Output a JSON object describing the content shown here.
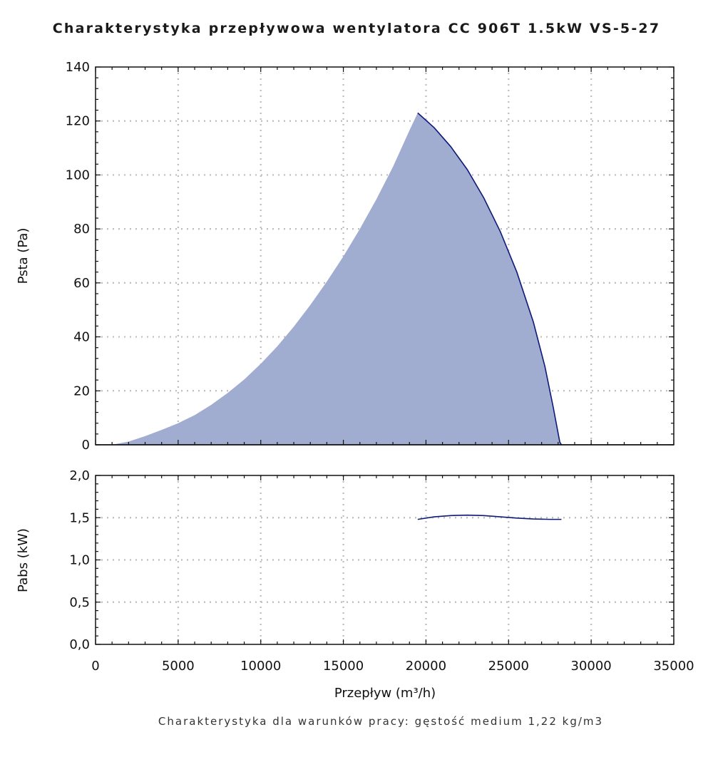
{
  "chart_data": [
    {
      "type": "area",
      "title": "Charakterystyka przepływowa wentylatora CC 906T 1.5kW VS-5-27",
      "xlabel": "",
      "ylabel": "Psta (Pa)",
      "xlim": [
        0,
        35000
      ],
      "ylim": [
        0,
        140
      ],
      "xticks": [
        0,
        5000,
        10000,
        15000,
        20000,
        25000,
        30000,
        35000
      ],
      "yticks": [
        0,
        20,
        40,
        60,
        80,
        100,
        120,
        140
      ],
      "ytick_labels": [
        "0",
        "20",
        "40",
        "60",
        "80",
        "100",
        "120",
        "140"
      ],
      "grid": true,
      "fill_color": "#a0acd0",
      "line_color": "#0d1a78",
      "area_boundary": {
        "x": [
          0,
          1000,
          2000,
          3000,
          4000,
          5000,
          6000,
          7000,
          8000,
          9000,
          10000,
          11000,
          12000,
          13000,
          14000,
          15000,
          16000,
          17000,
          18000,
          19000,
          19500
        ],
        "y": [
          0,
          0,
          1.2,
          3.2,
          5.5,
          8.0,
          11.0,
          14.8,
          19.2,
          24.2,
          30.0,
          36.5,
          43.8,
          51.8,
          60.5,
          69.8,
          80.0,
          91.0,
          103.0,
          116.5,
          123.0
        ]
      },
      "series": [
        {
          "x": [
            19500,
            20500,
            21500,
            22500,
            23500,
            24500,
            25500,
            26500,
            27200,
            27700,
            28100,
            28200
          ],
          "y": [
            123.0,
            117.5,
            110.5,
            102.0,
            91.5,
            79.0,
            64.0,
            45.5,
            29.0,
            14.0,
            1.0,
            0
          ]
        }
      ]
    },
    {
      "type": "line",
      "xlabel": "Przepływ (m³/h)",
      "ylabel": "Pabs (kW)",
      "xlim": [
        0,
        35000
      ],
      "ylim": [
        0,
        2
      ],
      "xticks": [
        0,
        5000,
        10000,
        15000,
        20000,
        25000,
        30000,
        35000
      ],
      "xtick_labels": [
        "0",
        "5000",
        "10000",
        "15000",
        "20000",
        "25000",
        "30000",
        "35000"
      ],
      "yticks": [
        0,
        0.5,
        1,
        1.5,
        2
      ],
      "ytick_labels": [
        "0,0",
        "0,5",
        "1,0",
        "1,5",
        "2,0"
      ],
      "grid": true,
      "line_color": "#0d1a78",
      "series": [
        {
          "x": [
            19500,
            20500,
            21500,
            22500,
            23500,
            24500,
            25500,
            26500,
            27500,
            28200
          ],
          "y": [
            1.48,
            1.51,
            1.525,
            1.53,
            1.525,
            1.51,
            1.495,
            1.485,
            1.48,
            1.48
          ]
        }
      ]
    }
  ],
  "footnote": "Charakterystyka dla warunków pracy: gęstość medium 1,22 kg/m3"
}
